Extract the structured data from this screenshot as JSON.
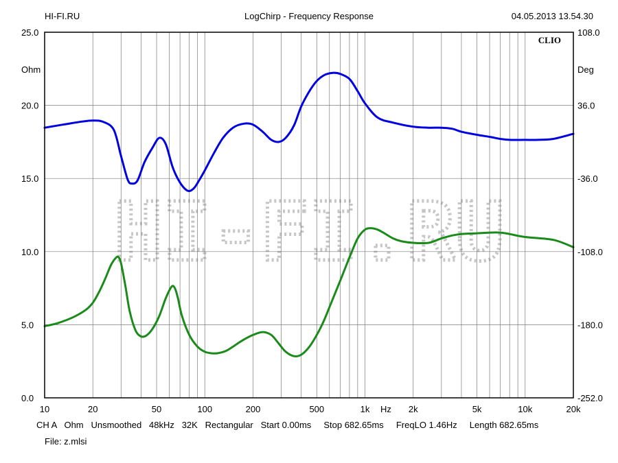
{
  "header": {
    "left": "HI-FI.RU",
    "title": "LogChirp - Frequency Response",
    "datetime": "04.05.2013 13.54.30"
  },
  "brand": "CLIO",
  "watermark": "HI-FI.RU",
  "footer": {
    "settings": "CH A   Ohm   Unsmoothed   48kHz   32K   Rectangular   Start 0.00ms     Stop 682.65ms     FreqLO 1.46Hz     Length 682.65ms",
    "file": "File: z.mlsi"
  },
  "chart_data": {
    "type": "line",
    "title": "LogChirp - Frequency Response",
    "xlabel": "Hz",
    "x_scale": "log",
    "xlim": [
      10,
      20000
    ],
    "x_tick_values": [
      10,
      20,
      50,
      100,
      200,
      500,
      1000,
      2000,
      5000,
      10000,
      20000
    ],
    "x_tick_labels": [
      "10",
      "20",
      "50",
      "100",
      "200",
      "500",
      "1k",
      "2k",
      "5k",
      "10k",
      "20k"
    ],
    "y_left": {
      "label": "Ohm",
      "lim": [
        0,
        25
      ],
      "ticks": [
        0,
        5,
        10,
        15,
        20,
        25
      ],
      "tick_labels": [
        "0.0",
        "5.0",
        "10.0",
        "15.0",
        "20.0",
        "25.0"
      ]
    },
    "y_right": {
      "label": "Deg",
      "lim": [
        -252,
        108
      ],
      "ticks": [
        -252,
        -180,
        -108,
        -36,
        36,
        108
      ],
      "tick_labels": [
        "-252.0",
        "-180.0",
        "-108.0",
        "-36.0",
        "36.0",
        "108.0"
      ]
    },
    "grid": true,
    "series": [
      {
        "name": "",
        "axis": "right",
        "color": "#0000e0",
        "x": [
          10,
          13,
          17,
          20,
          23,
          27,
          30,
          33,
          35,
          38,
          42,
          47,
          52,
          57,
          63,
          70,
          78,
          85,
          92,
          100,
          115,
          130,
          150,
          175,
          200,
          230,
          260,
          290,
          320,
          360,
          400,
          450,
          500,
          560,
          630,
          700,
          800,
          900,
          1000,
          1200,
          1500,
          2000,
          2500,
          3000,
          3500,
          4000,
          5000,
          6000,
          7000,
          8000,
          10000,
          12000,
          15000,
          20000
        ],
        "y": [
          14,
          17,
          20,
          21,
          20,
          12,
          -14,
          -37,
          -41,
          -38,
          -20,
          -6,
          4,
          -2,
          -25,
          -40,
          -48,
          -46,
          -38,
          -28,
          -10,
          4,
          14,
          18,
          17,
          10,
          2,
          0,
          4,
          16,
          35,
          50,
          60,
          66,
          68,
          67,
          62,
          50,
          38,
          24,
          19,
          15,
          14,
          14,
          13,
          10,
          7,
          5,
          3,
          2,
          2,
          2,
          3,
          8
        ]
      },
      {
        "name": "",
        "axis": "left",
        "color": "#1a8a1a",
        "x": [
          10,
          12,
          15,
          18,
          20,
          22,
          24,
          26,
          28,
          29,
          30,
          32,
          34,
          37,
          40,
          43,
          47,
          52,
          57,
          62,
          65,
          68,
          72,
          80,
          90,
          100,
          110,
          120,
          135,
          150,
          170,
          200,
          230,
          260,
          290,
          320,
          360,
          400,
          450,
          500,
          550,
          600,
          700,
          800,
          900,
          1000,
          1100,
          1200,
          1300,
          1500,
          1700,
          2000,
          2500,
          3000,
          3500,
          4000,
          5000,
          6000,
          7000,
          8000,
          10000,
          15000,
          20000
        ],
        "y": [
          4.9,
          5.1,
          5.5,
          6.0,
          6.5,
          7.3,
          8.2,
          9.1,
          9.6,
          9.6,
          9.2,
          7.6,
          5.9,
          4.6,
          4.2,
          4.25,
          4.7,
          5.6,
          6.8,
          7.6,
          7.5,
          6.8,
          5.6,
          4.3,
          3.5,
          3.15,
          3.05,
          3.05,
          3.2,
          3.5,
          3.9,
          4.3,
          4.5,
          4.3,
          3.7,
          3.15,
          2.85,
          2.95,
          3.5,
          4.3,
          5.2,
          6.2,
          8.0,
          9.6,
          10.9,
          11.5,
          11.6,
          11.5,
          11.3,
          10.9,
          10.7,
          10.6,
          10.6,
          10.9,
          11.1,
          11.2,
          11.25,
          11.3,
          11.3,
          11.2,
          11.0,
          10.8,
          10.3
        ]
      }
    ]
  }
}
